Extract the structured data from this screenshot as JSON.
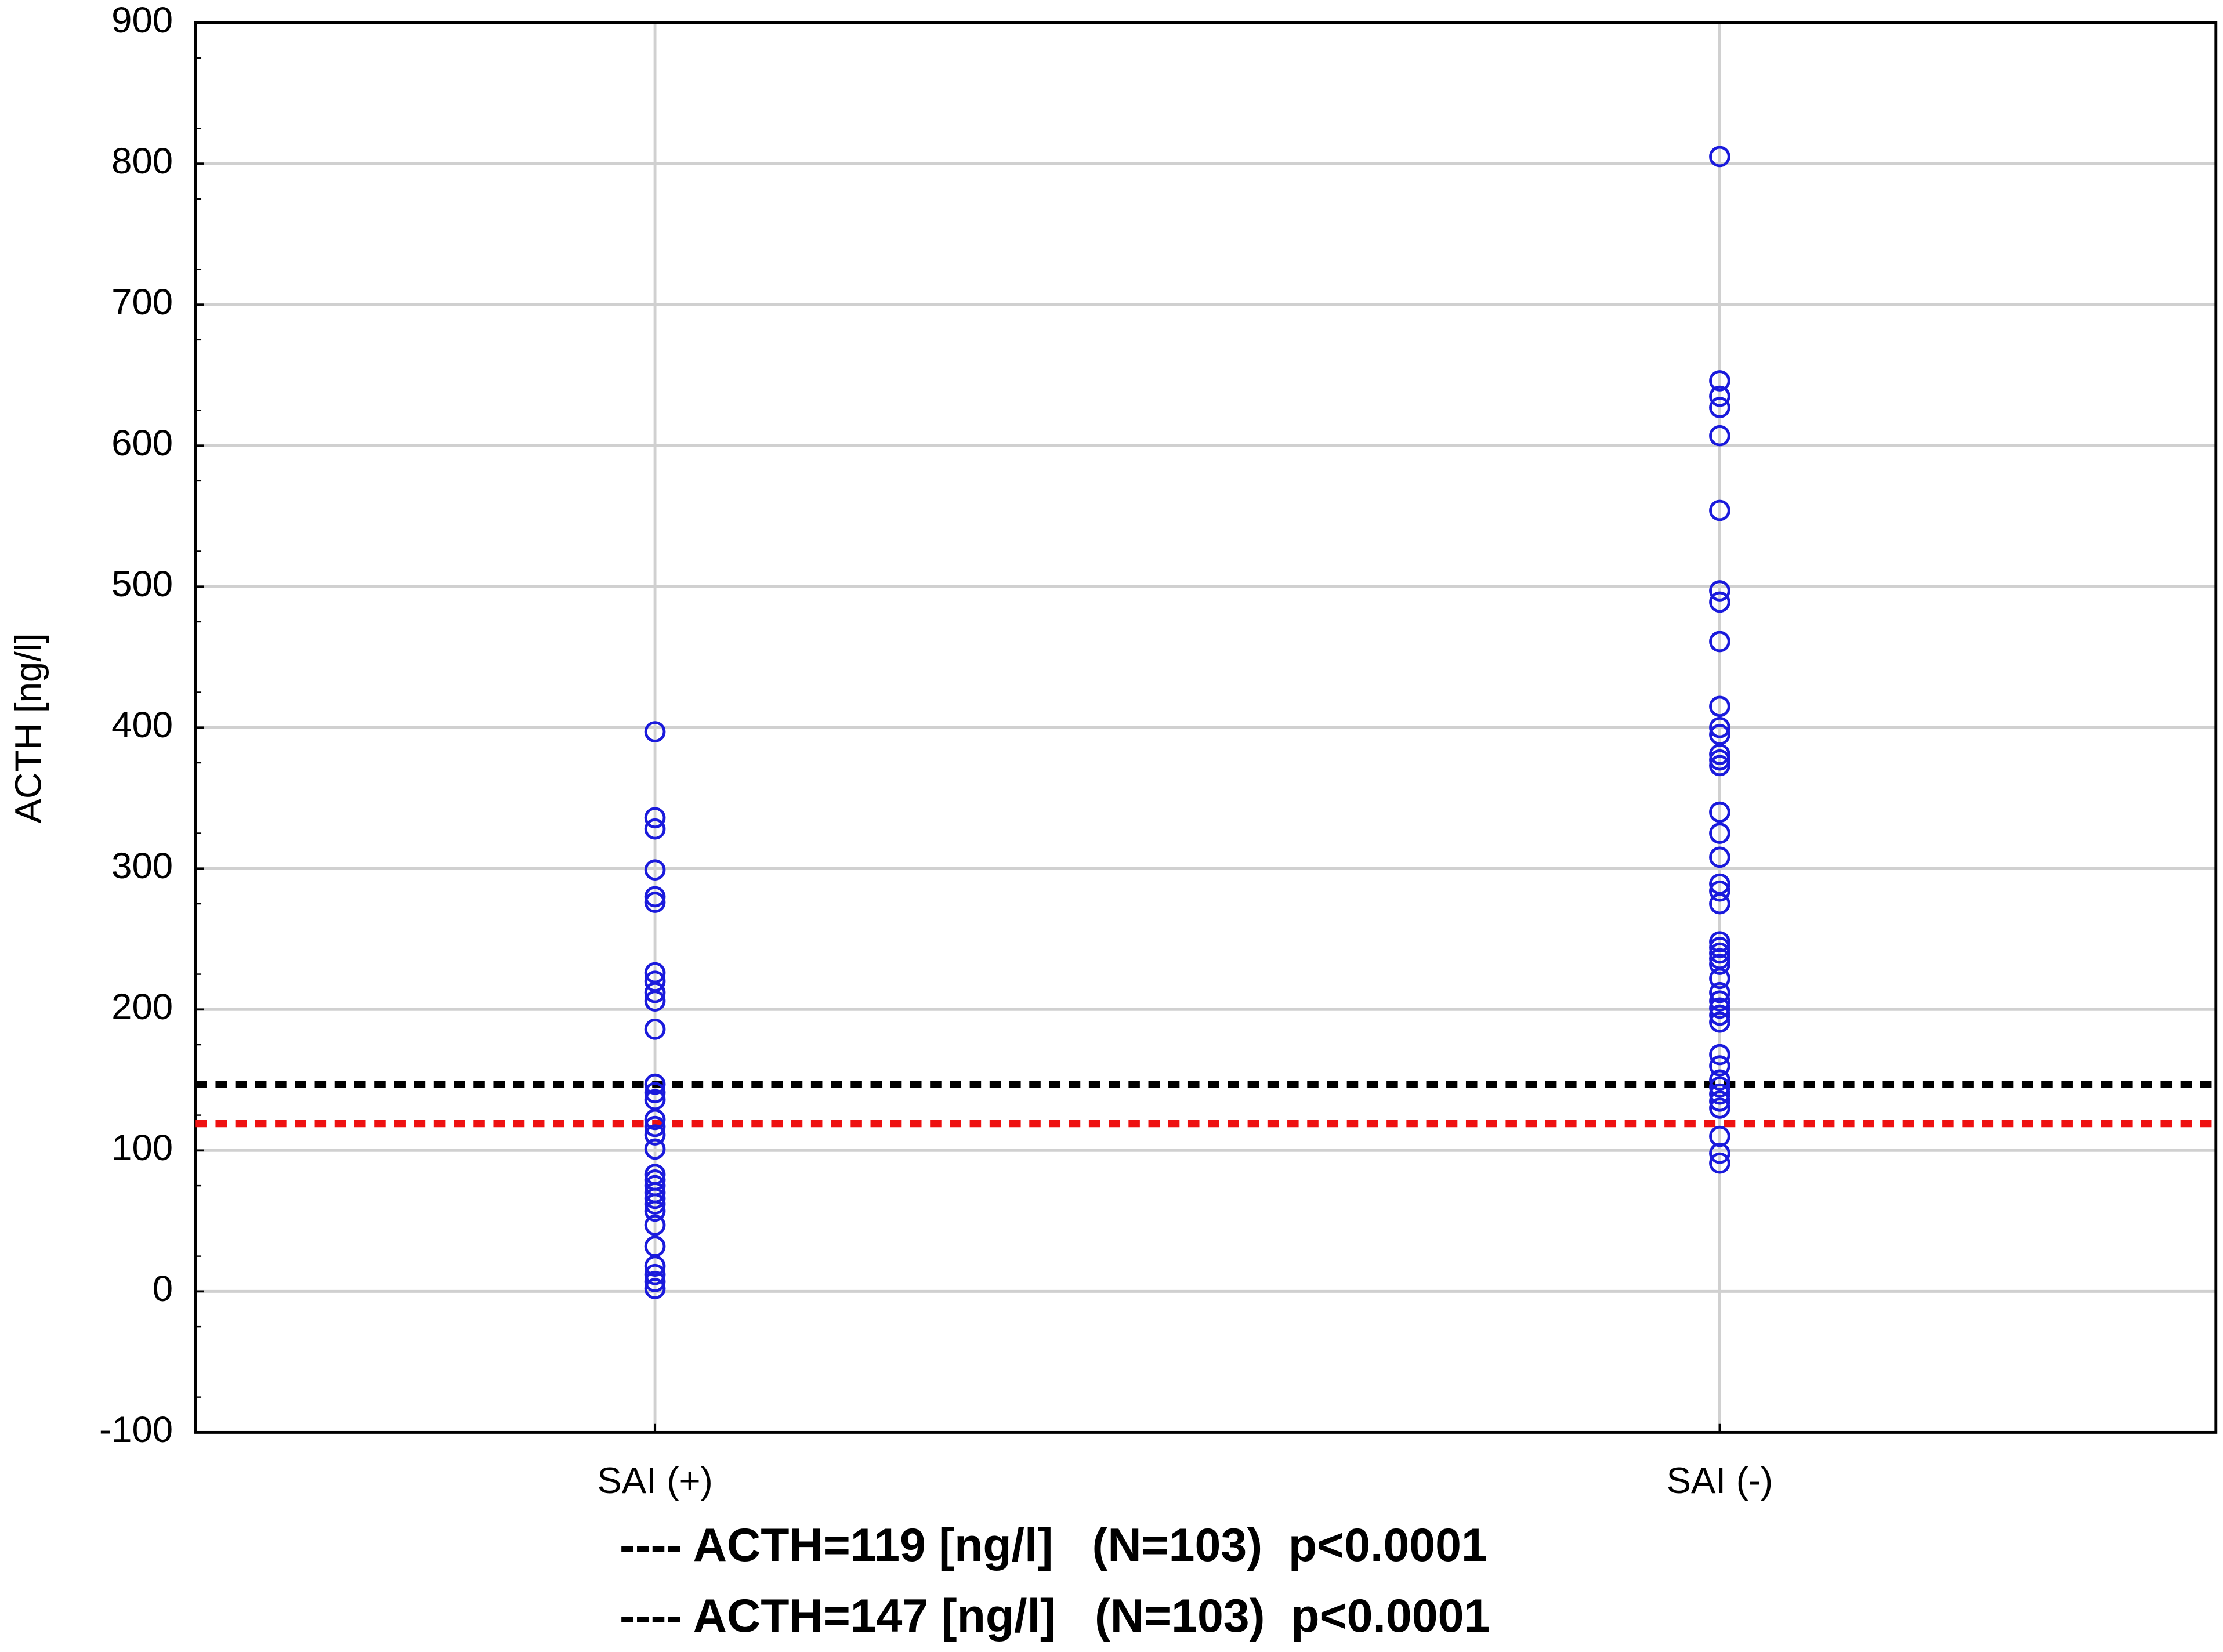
{
  "chart_data": {
    "type": "strip",
    "y_label": "ACTH [ng/l]",
    "categories": [
      "SAI (+)",
      "SAI (-)"
    ],
    "values": [
      [
        397,
        336,
        328,
        299,
        280,
        276,
        226,
        220,
        212,
        206,
        186,
        147,
        141,
        136,
        122,
        117,
        111,
        101,
        83,
        79,
        75,
        70,
        66,
        62,
        57,
        47,
        32,
        18,
        12,
        7,
        2
      ],
      [
        805,
        646,
        635,
        627,
        607,
        554,
        497,
        489,
        461,
        415,
        400,
        395,
        381,
        377,
        373,
        340,
        325,
        308,
        289,
        284,
        275,
        248,
        244,
        240,
        236,
        232,
        222,
        212,
        206,
        201,
        196,
        191,
        168,
        160,
        150,
        145,
        140,
        135,
        130,
        110,
        98,
        91
      ]
    ],
    "marker_color": "#1a1adc",
    "reference_lines": [
      {
        "value": 119,
        "color": "#ee1111",
        "label": "---- ACTH=119 [ng/l]   (N=103)  p<0.0001"
      },
      {
        "value": 147,
        "color": "#000000",
        "label": "---- ACTH=147 [ng/l]   (N=103)  p<0.0001"
      }
    ],
    "ylim": [
      -100,
      900
    ],
    "yticks": [
      -100,
      0,
      100,
      200,
      300,
      400,
      500,
      600,
      700,
      800,
      900
    ],
    "grid": true
  }
}
